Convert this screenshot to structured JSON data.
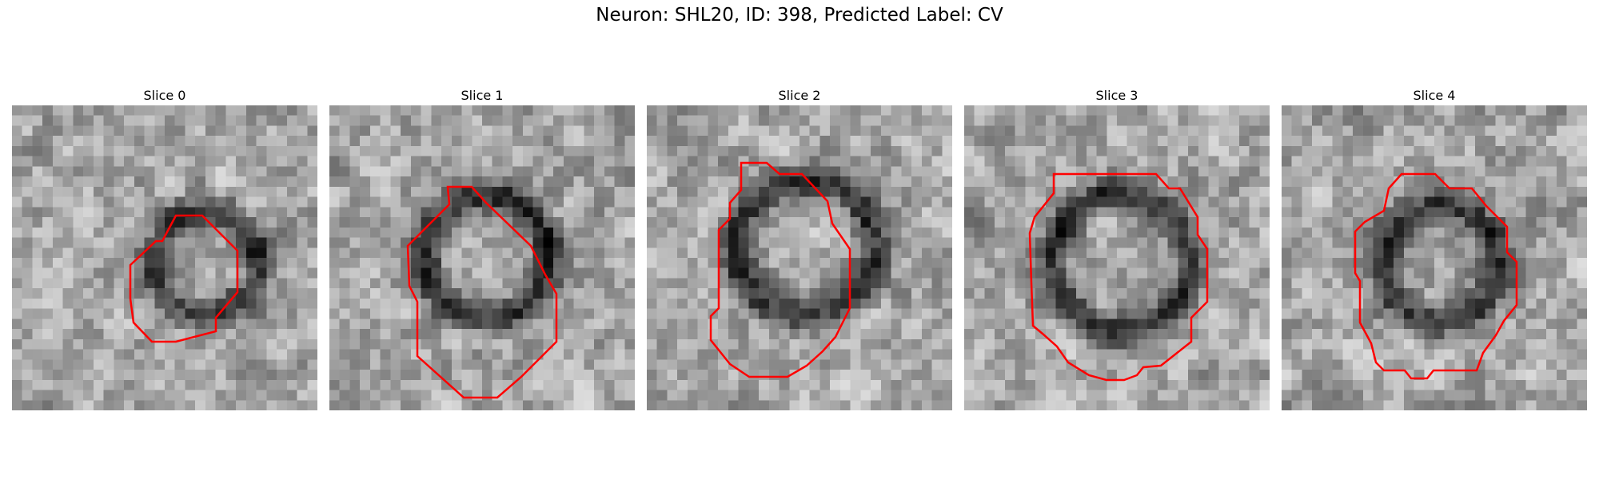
{
  "figure": {
    "title": "Neuron: SHL20, ID: 398, Predicted Label: CV"
  },
  "slices": [
    {
      "title": "Slice 0"
    },
    {
      "title": "Slice 1"
    },
    {
      "title": "Slice 2"
    },
    {
      "title": "Slice 3"
    },
    {
      "title": "Slice 4"
    }
  ],
  "colors": {
    "contour": "#ff0000"
  }
}
